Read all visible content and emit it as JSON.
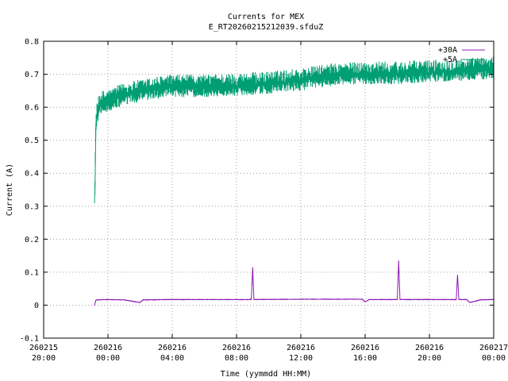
{
  "chart_data": {
    "type": "line",
    "title": "Currents for MEX",
    "subtitle": "E_RT20260215212039.sfduZ",
    "xlabel": "Time (yymmdd HH:MM)",
    "ylabel": "Current (A)",
    "xlim": [
      "2026-02-15 20:00",
      "2026-02-17 00:00"
    ],
    "ylim": [
      -0.1,
      0.8
    ],
    "grid": true,
    "legend": "top-right",
    "x_ticks": [
      {
        "date": "260215",
        "time": "20:00"
      },
      {
        "date": "260216",
        "time": "00:00"
      },
      {
        "date": "260216",
        "time": "04:00"
      },
      {
        "date": "260216",
        "time": "08:00"
      },
      {
        "date": "260216",
        "time": "12:00"
      },
      {
        "date": "260216",
        "time": "16:00"
      },
      {
        "date": "260216",
        "time": "20:00"
      },
      {
        "date": "260217",
        "time": "00:00"
      }
    ],
    "y_ticks": [
      "-0.1",
      "0",
      "0.1",
      "0.2",
      "0.3",
      "0.4",
      "0.5",
      "0.6",
      "0.7",
      "0.8"
    ],
    "series": [
      {
        "name": "+30A",
        "color": "#8c1ab4",
        "x": [
          "2026-02-15 23:10",
          "2026-02-15 23:15",
          "2026-02-15 23:20",
          "2026-02-16 00:00",
          "2026-02-16 01:00",
          "2026-02-16 02:00",
          "2026-02-16 02:10",
          "2026-02-16 04:00",
          "2026-02-16 06:00",
          "2026-02-16 08:00",
          "2026-02-16 08:55",
          "2026-02-16 09:00",
          "2026-02-16 09:05",
          "2026-02-16 12:00",
          "2026-02-16 15:50",
          "2026-02-16 16:00",
          "2026-02-16 16:15",
          "2026-02-16 18:00",
          "2026-02-16 18:05",
          "2026-02-16 18:10",
          "2026-02-16 20:00",
          "2026-02-16 21:40",
          "2026-02-16 21:45",
          "2026-02-16 21:50",
          "2026-02-16 22:20",
          "2026-02-16 22:30",
          "2026-02-16 23:10",
          "2026-02-17 00:00"
        ],
        "values": [
          0.0,
          0.015,
          0.016,
          0.017,
          0.016,
          0.008,
          0.016,
          0.017,
          0.017,
          0.017,
          0.017,
          0.115,
          0.017,
          0.018,
          0.018,
          0.01,
          0.017,
          0.017,
          0.135,
          0.017,
          0.017,
          0.017,
          0.092,
          0.017,
          0.017,
          0.008,
          0.016,
          0.017
        ]
      },
      {
        "name": "+5A",
        "color": "#009e73",
        "x": [
          "2026-02-15 23:10",
          "2026-02-15 23:12",
          "2026-02-15 23:15",
          "2026-02-15 23:20",
          "2026-02-15 23:30",
          "2026-02-16 00:00",
          "2026-02-16 00:30",
          "2026-02-16 01:00",
          "2026-02-16 02:00",
          "2026-02-16 03:00",
          "2026-02-16 04:00",
          "2026-02-16 06:00",
          "2026-02-16 08:00",
          "2026-02-16 10:00",
          "2026-02-16 12:00",
          "2026-02-16 14:00",
          "2026-02-16 16:00",
          "2026-02-16 18:00",
          "2026-02-16 20:00",
          "2026-02-16 22:00",
          "2026-02-17 00:00"
        ],
        "values": [
          0.31,
          0.37,
          0.55,
          0.58,
          0.61,
          0.615,
          0.625,
          0.635,
          0.645,
          0.655,
          0.66,
          0.66,
          0.665,
          0.67,
          0.68,
          0.695,
          0.7,
          0.7,
          0.705,
          0.71,
          0.715
        ]
      }
    ]
  }
}
